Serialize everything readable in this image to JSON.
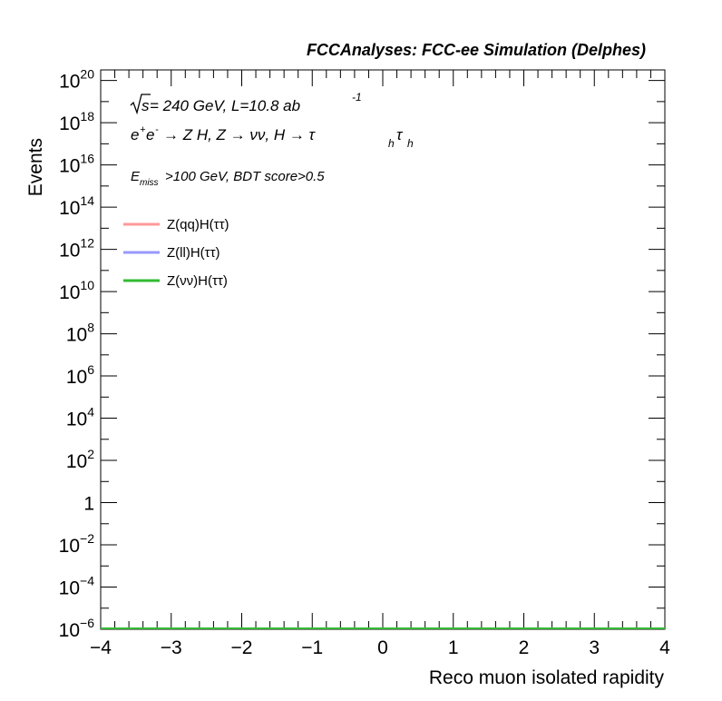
{
  "header": {
    "title": "FCCAnalyses: FCC-ee Simulation (Delphes)"
  },
  "annotations": {
    "energy_prefix": "s",
    "energy_text": " = 240 GeV, L=10.8 ab",
    "lumi_exponent": "-1",
    "process_lhs": "e",
    "process_lhs_plus": "+",
    "process_lhs_e2": "e",
    "process_lhs_minus": "-",
    "process_rest": "→ Z H, Z  → νν, H → τ",
    "tau1_sub": "h",
    "tau2": "τ",
    "tau2_sub": "h",
    "cut_E": "E",
    "cut_sub": "miss",
    "cut_rest": ">100 GeV, BDT score>0.5"
  },
  "chart_data": {
    "type": "line",
    "title": "",
    "xlabel": "Reco muon isolated rapidity",
    "ylabel": "Events",
    "xlim": [
      -4,
      4
    ],
    "ylim_log10": [
      -6,
      20.5
    ],
    "y_scale": "log",
    "x_ticks": [
      -4,
      -3,
      -2,
      -1,
      0,
      1,
      2,
      3,
      4
    ],
    "x_tick_labels": [
      "−4",
      "−3",
      "−2",
      "−1",
      "0",
      "1",
      "2",
      "3",
      "4"
    ],
    "y_ticks_log10": [
      -6,
      -4,
      -2,
      0,
      2,
      4,
      6,
      8,
      10,
      12,
      14,
      16,
      18,
      20
    ],
    "y_tick_labels": [
      {
        "base": "10",
        "exp": "−6"
      },
      {
        "base": "10",
        "exp": "−4"
      },
      {
        "base": "10",
        "exp": "−2"
      },
      {
        "base": "1",
        "exp": ""
      },
      {
        "base": "10",
        "exp": "2"
      },
      {
        "base": "10",
        "exp": "4"
      },
      {
        "base": "10",
        "exp": "6"
      },
      {
        "base": "10",
        "exp": "8"
      },
      {
        "base": "10",
        "exp": "10"
      },
      {
        "base": "10",
        "exp": "12"
      },
      {
        "base": "10",
        "exp": "14"
      },
      {
        "base": "10",
        "exp": "16"
      },
      {
        "base": "10",
        "exp": "18"
      },
      {
        "base": "10",
        "exp": "20"
      }
    ],
    "legend_position": "top-left",
    "grid": false,
    "series": [
      {
        "name": "Z(qq)H(ττ)",
        "color": "#ff9999",
        "x": [
          -4,
          4
        ],
        "y": [
          0,
          0
        ]
      },
      {
        "name": "Z(ll)H(ττ)",
        "color": "#9999ff",
        "x": [
          -4,
          4
        ],
        "y": [
          0,
          0
        ]
      },
      {
        "name": "Z(νν)H(ττ)",
        "color": "#33bb33",
        "x": [
          -4,
          4
        ],
        "y": [
          0,
          0
        ]
      }
    ]
  }
}
